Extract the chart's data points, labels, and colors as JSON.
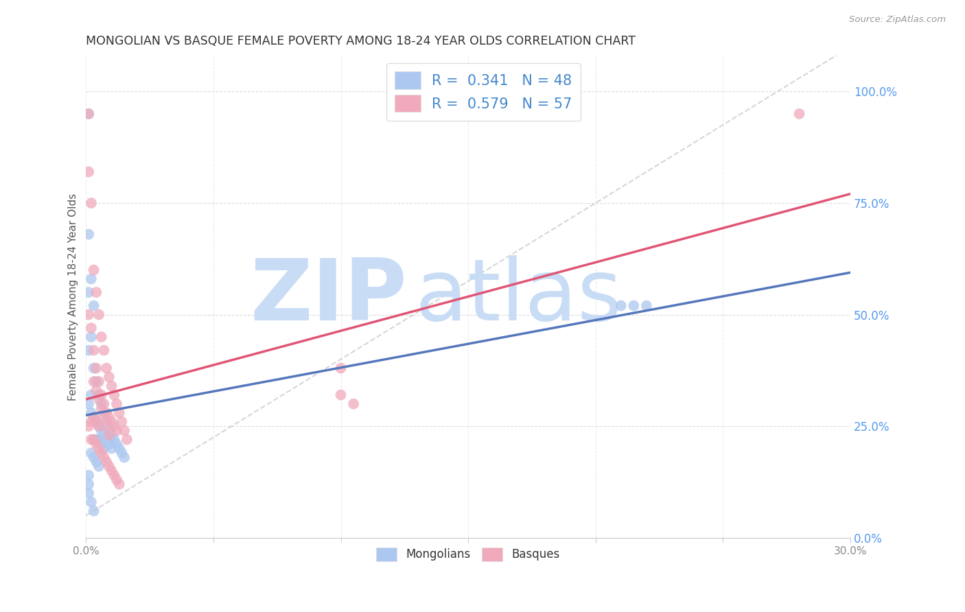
{
  "title": "MONGOLIAN VS BASQUE FEMALE POVERTY AMONG 18-24 YEAR OLDS CORRELATION CHART",
  "source": "Source: ZipAtlas.com",
  "ylabel": "Female Poverty Among 18-24 Year Olds",
  "xlim": [
    0.0,
    0.3
  ],
  "ylim": [
    0.0,
    1.08
  ],
  "xtick_positions": [
    0.0,
    0.05,
    0.1,
    0.15,
    0.2,
    0.25,
    0.3
  ],
  "xticklabels": [
    "0.0%",
    "",
    "",
    "",
    "",
    "",
    "30.0%"
  ],
  "ytick_positions_right": [
    0.0,
    0.25,
    0.5,
    0.75,
    1.0
  ],
  "ytick_labels_right": [
    "0.0%",
    "25.0%",
    "50.0%",
    "75.0%",
    "100.0%"
  ],
  "mongolian_color": "#adc8f0",
  "basque_color": "#f0aabb",
  "mongolian_line_color": "#5577bb",
  "basque_line_color": "#e05575",
  "dashed_line_color": "#bbbbcc",
  "mongolian_R": 0.341,
  "mongolian_N": 48,
  "basque_R": 0.579,
  "basque_N": 57,
  "legend_text_color": "#4488cc",
  "watermark_zip": "ZIP",
  "watermark_atlas": "atlas",
  "watermark_color_zip": "#c8ddf5",
  "watermark_color_atlas": "#c8ddf5",
  "title_color": "#333333",
  "source_color": "#999999",
  "grid_color": "#cccccc",
  "background_color": "#ffffff",
  "mongolian_x": [
    0.001,
    0.001,
    0.001,
    0.001,
    0.002,
    0.002,
    0.002,
    0.002,
    0.003,
    0.003,
    0.003,
    0.003,
    0.004,
    0.004,
    0.004,
    0.005,
    0.005,
    0.005,
    0.006,
    0.006,
    0.006,
    0.007,
    0.007,
    0.007,
    0.008,
    0.008,
    0.009,
    0.009,
    0.01,
    0.01,
    0.011,
    0.012,
    0.013,
    0.014,
    0.015,
    0.002,
    0.003,
    0.004,
    0.005,
    0.001,
    0.001,
    0.001,
    0.002,
    0.003,
    0.21,
    0.215,
    0.22,
    0.001
  ],
  "mongolian_y": [
    0.68,
    0.55,
    0.42,
    0.3,
    0.58,
    0.45,
    0.32,
    0.28,
    0.52,
    0.38,
    0.27,
    0.22,
    0.35,
    0.26,
    0.22,
    0.32,
    0.25,
    0.22,
    0.3,
    0.24,
    0.21,
    0.28,
    0.23,
    0.2,
    0.26,
    0.22,
    0.24,
    0.21,
    0.23,
    0.2,
    0.22,
    0.21,
    0.2,
    0.19,
    0.18,
    0.19,
    0.18,
    0.17,
    0.16,
    0.14,
    0.12,
    0.1,
    0.08,
    0.06,
    0.52,
    0.52,
    0.52,
    0.95
  ],
  "basque_x": [
    0.001,
    0.001,
    0.001,
    0.002,
    0.002,
    0.002,
    0.003,
    0.003,
    0.003,
    0.004,
    0.004,
    0.004,
    0.005,
    0.005,
    0.005,
    0.006,
    0.006,
    0.007,
    0.007,
    0.008,
    0.008,
    0.009,
    0.009,
    0.01,
    0.01,
    0.011,
    0.011,
    0.012,
    0.012,
    0.013,
    0.014,
    0.015,
    0.016,
    0.003,
    0.004,
    0.005,
    0.006,
    0.007,
    0.008,
    0.009,
    0.002,
    0.003,
    0.004,
    0.005,
    0.006,
    0.007,
    0.008,
    0.009,
    0.01,
    0.011,
    0.012,
    0.013,
    0.1,
    0.1,
    0.105,
    0.28,
    0.001
  ],
  "basque_y": [
    0.82,
    0.5,
    0.25,
    0.75,
    0.47,
    0.26,
    0.6,
    0.42,
    0.27,
    0.55,
    0.38,
    0.26,
    0.5,
    0.35,
    0.25,
    0.45,
    0.32,
    0.42,
    0.3,
    0.38,
    0.28,
    0.36,
    0.27,
    0.34,
    0.26,
    0.32,
    0.25,
    0.3,
    0.24,
    0.28,
    0.26,
    0.24,
    0.22,
    0.35,
    0.33,
    0.31,
    0.29,
    0.27,
    0.25,
    0.23,
    0.22,
    0.22,
    0.21,
    0.2,
    0.19,
    0.18,
    0.17,
    0.16,
    0.15,
    0.14,
    0.13,
    0.12,
    0.38,
    0.32,
    0.3,
    0.95,
    0.95
  ]
}
